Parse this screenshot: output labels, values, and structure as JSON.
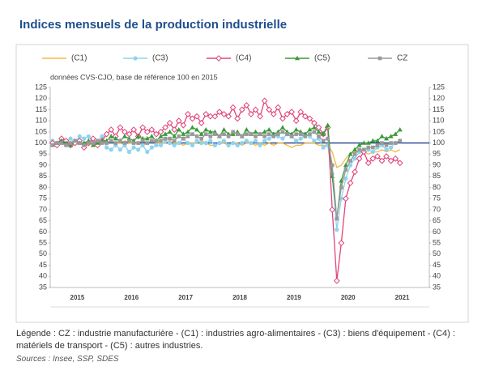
{
  "chart_data": {
    "type": "line",
    "title": "Indices mensuels de la production industrielle",
    "subtitle": "données CVS-CJO, base de référence 100 en 2015",
    "note": "Légende : CZ : industrie manufacturière - (C1) : industries agro-alimentaires - (C3) : biens d'équipement - (C4) : matériels de transport - (C5) : autres industries.",
    "source": "Sources : Insee, SSP, SDES",
    "xlim": [
      2015,
      2022
    ],
    "xticks": [
      {
        "value": 2015.5,
        "label": "2015"
      },
      {
        "value": 2016.5,
        "label": "2016"
      },
      {
        "value": 2017.5,
        "label": "2017"
      },
      {
        "value": 2018.5,
        "label": "2018"
      },
      {
        "value": 2019.5,
        "label": "2019"
      },
      {
        "value": 2020.5,
        "label": "2020"
      },
      {
        "value": 2021.5,
        "label": "2021"
      }
    ],
    "ylim": [
      35,
      125
    ],
    "yticks": [
      35,
      40,
      45,
      50,
      55,
      60,
      65,
      70,
      75,
      80,
      85,
      90,
      95,
      100,
      105,
      110,
      115,
      120,
      125
    ],
    "y2lim": [
      35,
      125
    ],
    "y2ticks": [
      35,
      40,
      45,
      50,
      55,
      60,
      65,
      70,
      75,
      80,
      85,
      90,
      95,
      100,
      105,
      110,
      115,
      120,
      125
    ],
    "reference_line": 100,
    "reference_color": "#1f3d8c",
    "x": [
      2015.042,
      2015.125,
      2015.208,
      2015.292,
      2015.375,
      2015.458,
      2015.542,
      2015.625,
      2015.708,
      2015.792,
      2015.875,
      2015.958,
      2016.042,
      2016.125,
      2016.208,
      2016.292,
      2016.375,
      2016.458,
      2016.542,
      2016.625,
      2016.708,
      2016.792,
      2016.875,
      2016.958,
      2017.042,
      2017.125,
      2017.208,
      2017.292,
      2017.375,
      2017.458,
      2017.542,
      2017.625,
      2017.708,
      2017.792,
      2017.875,
      2017.958,
      2018.042,
      2018.125,
      2018.208,
      2018.292,
      2018.375,
      2018.458,
      2018.542,
      2018.625,
      2018.708,
      2018.792,
      2018.875,
      2018.958,
      2019.042,
      2019.125,
      2019.208,
      2019.292,
      2019.375,
      2019.458,
      2019.542,
      2019.625,
      2019.708,
      2019.792,
      2019.875,
      2019.958,
      2020.042,
      2020.125,
      2020.208,
      2020.292,
      2020.375,
      2020.458,
      2020.542,
      2020.625,
      2020.708,
      2020.792,
      2020.875,
      2020.958,
      2021.042,
      2021.125,
      2021.208,
      2021.292,
      2021.375,
      2021.458
    ],
    "series": [
      {
        "name": "(C1)",
        "color": "#f5b841",
        "marker": "none",
        "values": [
          99,
          100,
          100,
          99,
          100,
          101,
          100,
          100,
          99,
          100,
          100,
          101,
          100,
          101,
          100,
          100,
          101,
          100,
          100,
          100,
          99,
          100,
          101,
          100,
          100,
          100,
          101,
          100,
          100,
          99,
          100,
          100,
          100,
          101,
          100,
          99,
          99,
          100,
          100,
          99,
          100,
          100,
          99,
          100,
          100,
          99,
          100,
          99,
          100,
          99,
          100,
          100,
          99,
          98,
          99,
          99,
          100,
          100,
          100,
          99,
          99,
          99,
          96,
          89,
          90,
          93,
          95,
          96,
          96,
          96,
          95,
          96,
          96,
          97,
          96,
          97,
          96,
          97
        ]
      },
      {
        "name": "(C3)",
        "color": "#8fd3ee",
        "marker": "circle",
        "values": [
          101,
          100,
          102,
          101,
          102,
          100,
          103,
          102,
          103,
          100,
          101,
          103,
          98,
          97,
          99,
          97,
          99,
          96,
          98,
          97,
          99,
          96,
          98,
          99,
          99,
          101,
          100,
          99,
          100,
          102,
          100,
          99,
          101,
          100,
          100,
          101,
          99,
          100,
          101,
          99,
          100,
          99,
          100,
          101,
          100,
          101,
          99,
          101,
          102,
          104,
          103,
          102,
          104,
          103,
          101,
          102,
          104,
          103,
          101,
          102,
          98,
          99,
          86,
          61,
          75,
          84,
          90,
          93,
          96,
          97,
          97,
          96,
          98,
          99,
          97,
          98,
          100,
          101
        ]
      },
      {
        "name": "(C4)",
        "color": "#e0457b",
        "marker": "diamond",
        "values": [
          100,
          99,
          102,
          101,
          99,
          100,
          101,
          98,
          100,
          102,
          99,
          101,
          104,
          106,
          103,
          107,
          105,
          104,
          106,
          103,
          107,
          105,
          106,
          104,
          105,
          107,
          109,
          106,
          110,
          108,
          113,
          111,
          112,
          109,
          113,
          112,
          112,
          114,
          113,
          112,
          116,
          111,
          115,
          117,
          113,
          115,
          112,
          119,
          115,
          113,
          116,
          111,
          113,
          114,
          110,
          114,
          112,
          111,
          109,
          107,
          104,
          107,
          70,
          38,
          55,
          75,
          82,
          87,
          93,
          96,
          91,
          93,
          94,
          92,
          94,
          92,
          93,
          91
        ]
      },
      {
        "name": "(C5)",
        "color": "#3a9a3a",
        "marker": "triangle",
        "values": [
          99,
          100,
          101,
          100,
          99,
          101,
          100,
          100,
          101,
          99,
          100,
          101,
          101,
          103,
          102,
          101,
          103,
          102,
          101,
          103,
          102,
          102,
          103,
          101,
          103,
          104,
          105,
          103,
          106,
          104,
          105,
          107,
          106,
          104,
          106,
          105,
          105,
          103,
          106,
          104,
          104,
          105,
          103,
          106,
          104,
          105,
          104,
          105,
          106,
          104,
          105,
          107,
          105,
          104,
          106,
          105,
          104,
          106,
          107,
          105,
          104,
          108,
          85,
          66,
          83,
          90,
          95,
          97,
          99,
          100,
          100,
          101,
          101,
          103,
          102,
          103,
          104,
          106
        ]
      },
      {
        "name": "CZ",
        "color": "#999999",
        "marker": "square",
        "values": [
          99,
          100,
          100,
          99,
          100,
          101,
          100,
          99,
          100,
          100,
          101,
          100,
          100,
          101,
          100,
          101,
          100,
          101,
          100,
          100,
          101,
          100,
          101,
          101,
          101,
          102,
          102,
          101,
          103,
          102,
          103,
          104,
          103,
          102,
          104,
          103,
          104,
          103,
          104,
          103,
          105,
          104,
          103,
          104,
          104,
          103,
          104,
          103,
          104,
          103,
          104,
          105,
          104,
          103,
          104,
          104,
          103,
          104,
          105,
          103,
          101,
          102,
          90,
          66,
          80,
          88,
          92,
          95,
          97,
          97,
          98,
          98,
          99,
          100,
          99,
          100,
          100,
          101
        ]
      }
    ]
  }
}
